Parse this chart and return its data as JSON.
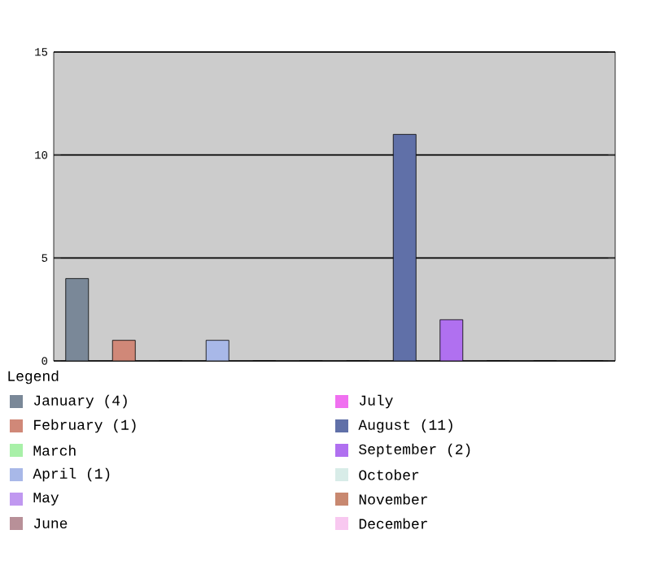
{
  "chart_data": {
    "type": "bar",
    "categories": [
      null,
      null,
      null,
      null,
      null,
      null,
      null,
      null,
      null,
      null,
      null,
      null
    ],
    "ylim": [
      0,
      15
    ],
    "yticks": [
      0,
      5,
      10,
      15
    ],
    "grid": "y",
    "legend": "bottom",
    "legend_title": "Legend",
    "series": [
      {
        "name": "January (4)",
        "color": "#7a8898",
        "values": [
          4,
          null,
          null,
          null,
          null,
          null,
          null,
          null,
          null,
          null,
          null,
          null
        ]
      },
      {
        "name": "February (1)",
        "color": "#d08878",
        "values": [
          null,
          1,
          null,
          null,
          null,
          null,
          null,
          null,
          null,
          null,
          null,
          null
        ]
      },
      {
        "name": "March",
        "color": "#a8f0a8",
        "values": [
          null,
          null,
          0,
          null,
          null,
          null,
          null,
          null,
          null,
          null,
          null,
          null
        ]
      },
      {
        "name": "April (1)",
        "color": "#a8b8e8",
        "values": [
          null,
          null,
          null,
          1,
          null,
          null,
          null,
          null,
          null,
          null,
          null,
          null
        ]
      },
      {
        "name": "May",
        "color": "#c098f0",
        "values": [
          null,
          null,
          null,
          null,
          0,
          null,
          null,
          null,
          null,
          null,
          null,
          null
        ]
      },
      {
        "name": "June",
        "color": "#b89098",
        "values": [
          null,
          null,
          null,
          null,
          null,
          0,
          null,
          null,
          null,
          null,
          null,
          null
        ]
      },
      {
        "name": "July",
        "color": "#f070f0",
        "values": [
          null,
          null,
          null,
          null,
          null,
          null,
          0,
          null,
          null,
          null,
          null,
          null
        ]
      },
      {
        "name": "August (11)",
        "color": "#6070a8",
        "values": [
          null,
          null,
          null,
          null,
          null,
          null,
          null,
          11,
          null,
          null,
          null,
          null
        ]
      },
      {
        "name": "September (2)",
        "color": "#b070f0",
        "values": [
          null,
          null,
          null,
          null,
          null,
          null,
          null,
          null,
          2,
          null,
          null,
          null
        ]
      },
      {
        "name": "October",
        "color": "#d8ece8",
        "values": [
          null,
          null,
          null,
          null,
          null,
          null,
          null,
          null,
          null,
          0,
          null,
          null
        ]
      },
      {
        "name": "November",
        "color": "#c88870",
        "values": [
          null,
          null,
          null,
          null,
          null,
          null,
          null,
          null,
          null,
          null,
          0,
          null
        ]
      },
      {
        "name": "December",
        "color": "#f8c8f0",
        "values": [
          null,
          null,
          null,
          null,
          null,
          null,
          null,
          null,
          null,
          null,
          null,
          0
        ]
      }
    ]
  }
}
